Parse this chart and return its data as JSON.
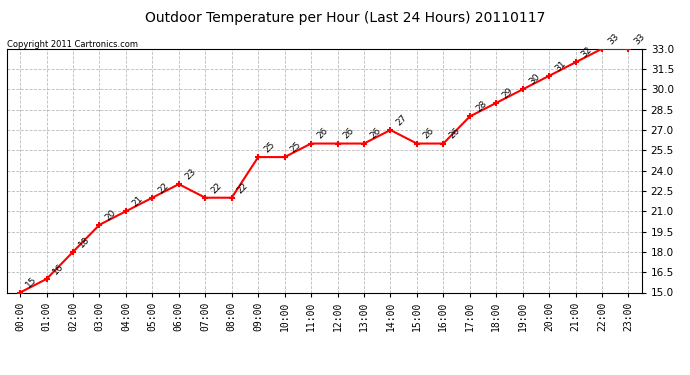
{
  "title": "Outdoor Temperature per Hour (Last 24 Hours) 20110117",
  "copyright": "Copyright 2011 Cartronics.com",
  "hours": [
    "00:00",
    "01:00",
    "02:00",
    "03:00",
    "04:00",
    "05:00",
    "06:00",
    "07:00",
    "08:00",
    "09:00",
    "10:00",
    "11:00",
    "12:00",
    "13:00",
    "14:00",
    "15:00",
    "16:00",
    "17:00",
    "18:00",
    "19:00",
    "20:00",
    "21:00",
    "22:00",
    "23:00"
  ],
  "temps": [
    15,
    16,
    18,
    20,
    21,
    22,
    23,
    22,
    22,
    25,
    25,
    26,
    26,
    26,
    27,
    26,
    26,
    28,
    29,
    30,
    31,
    32,
    33,
    33
  ],
  "ylim_min": 15.0,
  "ylim_max": 33.0,
  "yticks": [
    15.0,
    16.5,
    18.0,
    19.5,
    21.0,
    22.5,
    24.0,
    25.5,
    27.0,
    28.5,
    30.0,
    31.5,
    33.0
  ],
  "line_color": "red",
  "marker_color": "red",
  "bg_color": "white",
  "grid_color": "#bbbbbb",
  "label_fontsize": 6.5,
  "title_fontsize": 10,
  "copyright_fontsize": 6
}
